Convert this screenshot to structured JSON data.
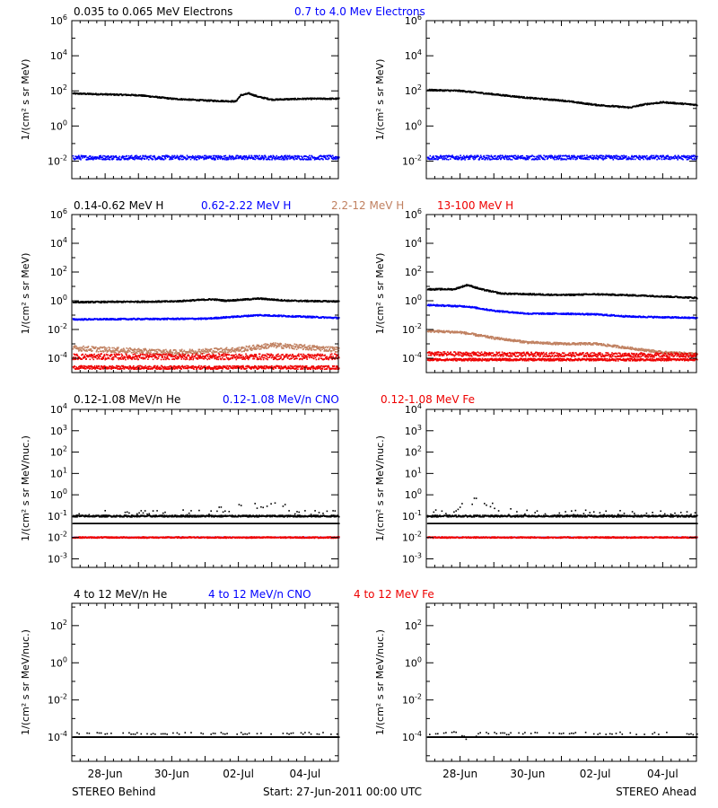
{
  "footer": {
    "left": "STEREO Behind",
    "center": "Start: 27-Jun-2011 00:00 UTC",
    "right": "STEREO Ahead"
  },
  "chart_data": [
    {
      "type": "scatter",
      "id": "electrons",
      "yscale": "log",
      "ylabel": "1/(cm² s sr MeV)",
      "ylim_exp": [
        -3,
        6
      ],
      "ticks_exp": [
        -2,
        0,
        2,
        4,
        6
      ],
      "series_labels": [
        {
          "name": "0.035 to 0.065 MeV Electrons",
          "color": "#000000"
        },
        {
          "name": "0.7 to 4.0 Mev Electrons",
          "color": "#0000ff"
        }
      ],
      "panels": [
        {
          "side": "STEREO Behind",
          "series": [
            {
              "color": "#000000",
              "profile": [
                [
                  0,
                  1.85
                ],
                [
                  2,
                  1.75
                ],
                [
                  3,
                  1.55
                ],
                [
                  4,
                  1.45
                ],
                [
                  4.9,
                  1.4
                ],
                [
                  5.05,
                  1.75
                ],
                [
                  5.3,
                  1.85
                ],
                [
                  5.6,
                  1.65
                ],
                [
                  6,
                  1.5
                ],
                [
                  7,
                  1.55
                ],
                [
                  8,
                  1.55
                ]
              ],
              "noise": 0.04
            },
            {
              "color": "#0000ff",
              "profile": [
                [
                  0,
                  -1.8
                ],
                [
                  8,
                  -1.8
                ]
              ],
              "noise": 0.12
            }
          ]
        },
        {
          "side": "STEREO Ahead",
          "series": [
            {
              "color": "#000000",
              "profile": [
                [
                  0,
                  2.05
                ],
                [
                  1,
                  2.0
                ],
                [
                  2,
                  1.8
                ],
                [
                  3,
                  1.6
                ],
                [
                  4,
                  1.45
                ],
                [
                  5,
                  1.2
                ],
                [
                  6,
                  1.05
                ],
                [
                  6.5,
                  1.25
                ],
                [
                  7,
                  1.35
                ],
                [
                  8,
                  1.2
                ]
              ],
              "noise": 0.04
            },
            {
              "color": "#0000ff",
              "profile": [
                [
                  0,
                  -1.8
                ],
                [
                  8,
                  -1.8
                ]
              ],
              "noise": 0.12
            }
          ]
        }
      ]
    },
    {
      "type": "scatter",
      "id": "protons",
      "yscale": "log",
      "ylabel": "1/(cm² s sr MeV)",
      "ylim_exp": [
        -5,
        6
      ],
      "ticks_exp": [
        -4,
        -2,
        0,
        2,
        4,
        6
      ],
      "series_labels": [
        {
          "name": "0.14-0.62 MeV H",
          "color": "#000000"
        },
        {
          "name": "0.62-2.22 MeV H",
          "color": "#0000ff"
        },
        {
          "name": "2.2-12 MeV H",
          "color": "#c08060"
        },
        {
          "name": "13-100 MeV H",
          "color": "#ee0000"
        }
      ],
      "panels": [
        {
          "side": "STEREO Behind",
          "series": [
            {
              "color": "#000000",
              "profile": [
                [
                  0,
                  -0.1
                ],
                [
                  3,
                  -0.05
                ],
                [
                  4.2,
                  0.1
                ],
                [
                  4.6,
                  0.0
                ],
                [
                  5.6,
                  0.15
                ],
                [
                  6.5,
                  0.0
                ],
                [
                  8,
                  -0.05
                ]
              ],
              "noise": 0.05
            },
            {
              "color": "#0000ff",
              "profile": [
                [
                  0,
                  -1.3
                ],
                [
                  4,
                  -1.25
                ],
                [
                  5.6,
                  -1.0
                ],
                [
                  8,
                  -1.2
                ]
              ],
              "noise": 0.05
            },
            {
              "color": "#c08060",
              "profile": [
                [
                  0,
                  -3.3
                ],
                [
                  3,
                  -3.6
                ],
                [
                  5,
                  -3.4
                ],
                [
                  6,
                  -3.1
                ],
                [
                  8,
                  -3.4
                ]
              ],
              "noise": 0.18
            },
            {
              "color": "#ee0000",
              "profile": [
                [
                  0,
                  -3.9
                ],
                [
                  8,
                  -3.9
                ]
              ],
              "noise": 0.2
            },
            {
              "color": "#ee0000",
              "profile": [
                [
                  0,
                  -4.65
                ],
                [
                  8,
                  -4.65
                ]
              ],
              "noise": 0.12
            }
          ]
        },
        {
          "side": "STEREO Ahead",
          "series": [
            {
              "color": "#000000",
              "profile": [
                [
                  0,
                  0.8
                ],
                [
                  0.8,
                  0.8
                ],
                [
                  1.2,
                  1.1
                ],
                [
                  1.6,
                  0.8
                ],
                [
                  2.2,
                  0.5
                ],
                [
                  4,
                  0.4
                ],
                [
                  5,
                  0.45
                ],
                [
                  6.5,
                  0.35
                ],
                [
                  8,
                  0.2
                ]
              ],
              "noise": 0.05
            },
            {
              "color": "#0000ff",
              "profile": [
                [
                  0,
                  -0.3
                ],
                [
                  1.2,
                  -0.4
                ],
                [
                  2,
                  -0.7
                ],
                [
                  3,
                  -0.9
                ],
                [
                  4,
                  -0.9
                ],
                [
                  5,
                  -0.95
                ],
                [
                  6,
                  -1.1
                ],
                [
                  8,
                  -1.2
                ]
              ],
              "noise": 0.05
            },
            {
              "color": "#c08060",
              "profile": [
                [
                  0,
                  -2.1
                ],
                [
                  1,
                  -2.2
                ],
                [
                  2,
                  -2.6
                ],
                [
                  3,
                  -2.9
                ],
                [
                  4,
                  -3.0
                ],
                [
                  5,
                  -3.0
                ],
                [
                  6,
                  -3.3
                ],
                [
                  7,
                  -3.6
                ],
                [
                  8,
                  -3.7
                ]
              ],
              "noise": 0.08
            },
            {
              "color": "#ee0000",
              "profile": [
                [
                  0,
                  -3.7
                ],
                [
                  8,
                  -3.8
                ]
              ],
              "noise": 0.15
            },
            {
              "color": "#ee0000",
              "profile": [
                [
                  0,
                  -4.1
                ],
                [
                  8,
                  -4.1
                ]
              ],
              "noise": 0.08
            }
          ]
        }
      ]
    },
    {
      "type": "scatter",
      "id": "suprathermal",
      "yscale": "log",
      "ylabel": "1/(cm² s sr MeV/nuc.)",
      "ylim_exp": [
        -3.4,
        4
      ],
      "ticks_exp": [
        -3,
        -2,
        -1,
        0,
        1,
        2,
        3,
        4
      ],
      "series_labels": [
        {
          "name": "0.12-1.08 MeV/n He",
          "color": "#000000"
        },
        {
          "name": "0.12-1.08 MeV/n CNO",
          "color": "#0000ff"
        },
        {
          "name": "0.12-1.08 MeV Fe",
          "color": "#ee0000"
        }
      ],
      "panels": [
        {
          "side": "STEREO Behind",
          "series": [
            {
              "color": "#000000",
              "profile": [
                [
                  0,
                  -1.0
                ],
                [
                  8,
                  -1.0
                ]
              ],
              "noise": 0.04
            },
            {
              "color": "#000000",
              "profile": [
                [
                  0,
                  -1.35
                ],
                [
                  8,
                  -1.35
                ]
              ],
              "noise": 0.0
            },
            {
              "color": "#000000",
              "profile": [
                [
                  0,
                  -0.9
                ],
                [
                  4,
                  -0.8
                ],
                [
                  5.6,
                  -0.5
                ],
                [
                  6.2,
                  -0.4
                ],
                [
                  6.6,
                  -0.8
                ],
                [
                  8,
                  -0.9
                ]
              ],
              "noise": 0.15,
              "sparse": true
            },
            {
              "color": "#0000ff",
              "profile": [
                [
                  0,
                  -2.0
                ],
                [
                  8,
                  -2.0
                ]
              ],
              "noise": 0.0
            },
            {
              "color": "#ee0000",
              "profile": [
                [
                  0,
                  -2.0
                ],
                [
                  8,
                  -2.0
                ]
              ],
              "noise": 0.03
            }
          ]
        },
        {
          "side": "STEREO Ahead",
          "series": [
            {
              "color": "#000000",
              "profile": [
                [
                  0,
                  -1.0
                ],
                [
                  8,
                  -1.0
                ]
              ],
              "noise": 0.04
            },
            {
              "color": "#000000",
              "profile": [
                [
                  0,
                  -1.35
                ],
                [
                  8,
                  -1.35
                ]
              ],
              "noise": 0.0
            },
            {
              "color": "#000000",
              "profile": [
                [
                  0,
                  -0.9
                ],
                [
                  0.8,
                  -0.7
                ],
                [
                  1.3,
                  -0.3
                ],
                [
                  1.7,
                  -0.3
                ],
                [
                  2.2,
                  -0.8
                ],
                [
                  8,
                  -0.9
                ]
              ],
              "noise": 0.15,
              "sparse": true
            },
            {
              "color": "#0000ff",
              "profile": [
                [
                  0,
                  -2.0
                ],
                [
                  8,
                  -2.0
                ]
              ],
              "noise": 0.0
            },
            {
              "color": "#ee0000",
              "profile": [
                [
                  0,
                  -2.0
                ],
                [
                  8,
                  -2.0
                ]
              ],
              "noise": 0.03
            }
          ]
        }
      ]
    },
    {
      "type": "scatter",
      "id": "energetic",
      "yscale": "log",
      "ylabel": "1/(cm² s sr MeV/nuc.)",
      "ylim_exp": [
        -5.3,
        3.2
      ],
      "ticks_exp": [
        -4,
        -2,
        0,
        2
      ],
      "series_labels": [
        {
          "name": "4 to 12 MeV/n He",
          "color": "#000000"
        },
        {
          "name": "4 to 12 MeV/n CNO",
          "color": "#0000ff"
        },
        {
          "name": "4 to 12 MeV Fe",
          "color": "#ee0000"
        }
      ],
      "panels": [
        {
          "side": "STEREO Behind",
          "series": [
            {
              "color": "#000000",
              "profile": [
                [
                  0,
                  -4.0
                ],
                [
                  8,
                  -4.0
                ]
              ],
              "noise": 0.0
            },
            {
              "color": "#000000",
              "profile": [
                [
                  0,
                  -3.8
                ],
                [
                  8,
                  -3.8
                ]
              ],
              "noise": 0.05,
              "sparse": true
            }
          ]
        },
        {
          "side": "STEREO Ahead",
          "series": [
            {
              "color": "#000000",
              "profile": [
                [
                  0,
                  -4.0
                ],
                [
                  8,
                  -4.0
                ]
              ],
              "noise": 0.0
            },
            {
              "color": "#000000",
              "profile": [
                [
                  0,
                  -3.8
                ],
                [
                  0.8,
                  -3.7
                ],
                [
                  1.2,
                  -4.1
                ],
                [
                  1.6,
                  -3.8
                ],
                [
                  8,
                  -3.8
                ]
              ],
              "noise": 0.07,
              "sparse": true
            }
          ]
        }
      ]
    }
  ],
  "x_axis": {
    "range_days": [
      0,
      8
    ],
    "tick_labels": [
      {
        "day": 1,
        "label": "28-Jun"
      },
      {
        "day": 3,
        "label": "30-Jun"
      },
      {
        "day": 5,
        "label": "02-Jul"
      },
      {
        "day": 7,
        "label": "04-Jul"
      }
    ]
  }
}
